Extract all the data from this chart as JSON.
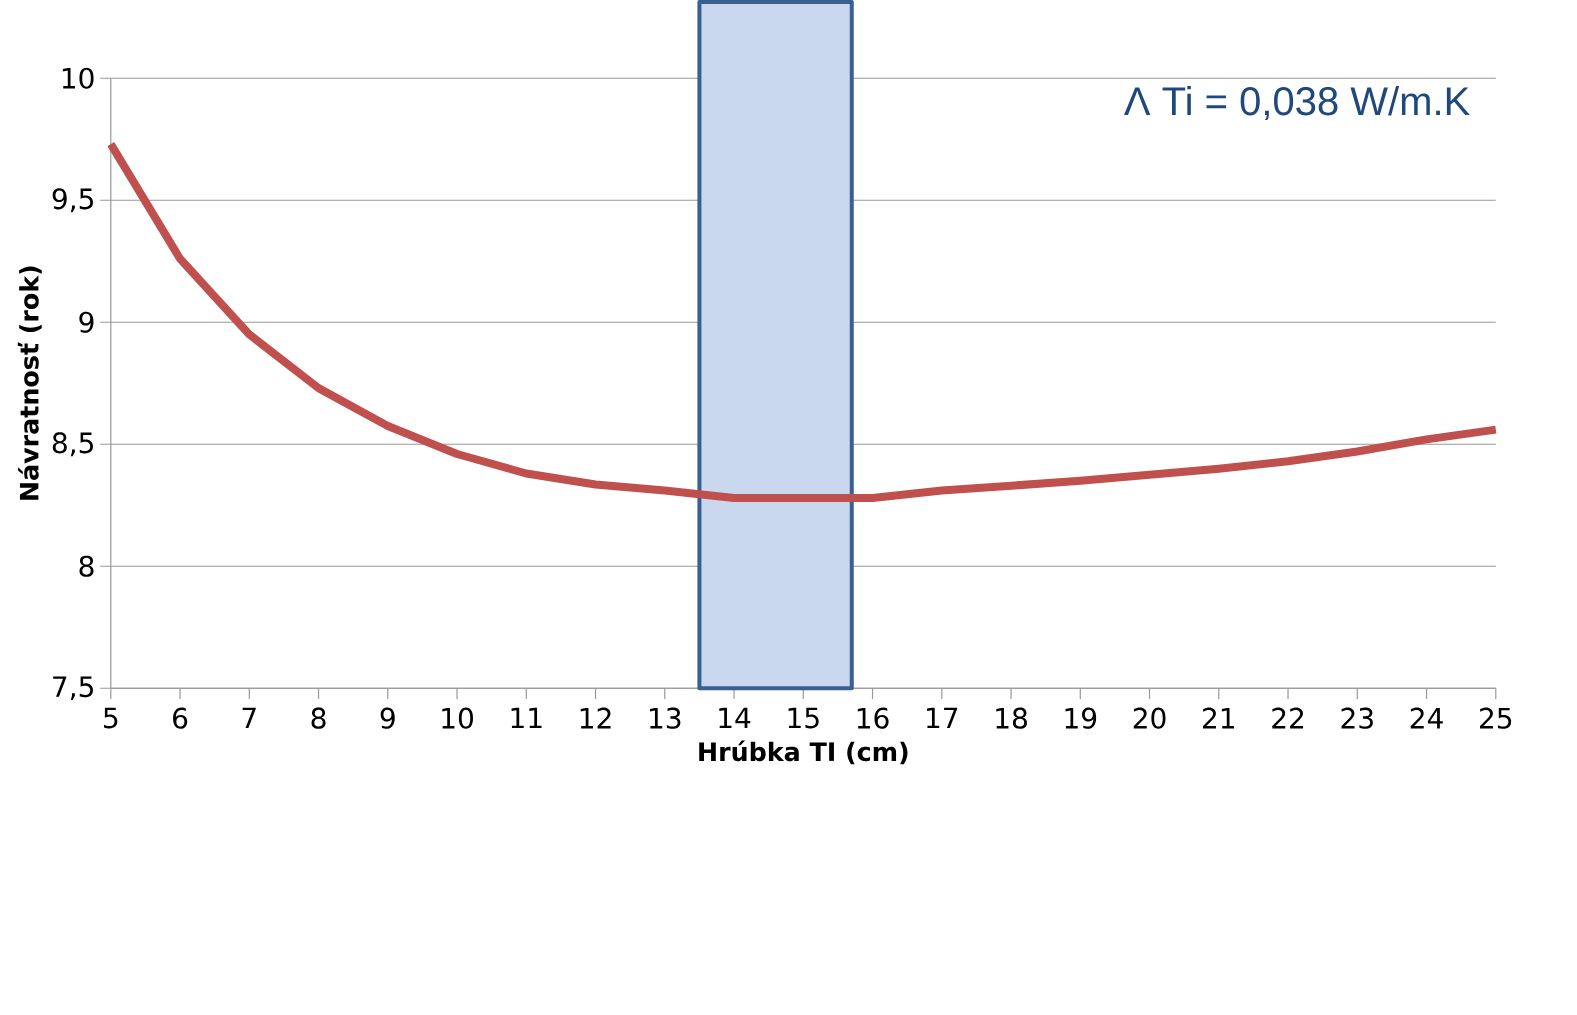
{
  "chart_data": {
    "type": "line",
    "xlabel": "Hrúbka TI (cm)",
    "ylabel": "Návratnosť (rok)",
    "annotations": [
      "Λ Ti = 0,038 W/m.K"
    ],
    "x": [
      5,
      6,
      7,
      8,
      9,
      10,
      11,
      12,
      13,
      14,
      15,
      16,
      17,
      18,
      19,
      20,
      21,
      22,
      23,
      24,
      25
    ],
    "series": [
      {
        "color": "#c0504d",
        "values": [
          9.73,
          9.26,
          8.95,
          8.73,
          8.575,
          8.46,
          8.38,
          8.335,
          8.31,
          8.28,
          8.28,
          8.28,
          8.31,
          8.33,
          8.35,
          8.375,
          8.4,
          8.43,
          8.47,
          8.52,
          8.56
        ]
      }
    ],
    "xlim": [
      5,
      25
    ],
    "ylim": [
      7.5,
      10
    ],
    "xticks": [
      5,
      6,
      7,
      8,
      9,
      10,
      11,
      12,
      13,
      14,
      15,
      16,
      17,
      18,
      19,
      20,
      21,
      22,
      23,
      24,
      25
    ],
    "yticks": [
      {
        "value": 7.5,
        "label": "7,5"
      },
      8,
      {
        "value": 8.5,
        "label": "8,5"
      },
      9,
      {
        "value": 9.5,
        "label": "9,5"
      },
      10
    ],
    "bands": [
      {
        "axis": "x",
        "from": 13.5,
        "to": 15.7,
        "color": "#c9d7ef"
      }
    ],
    "grid": "y"
  }
}
